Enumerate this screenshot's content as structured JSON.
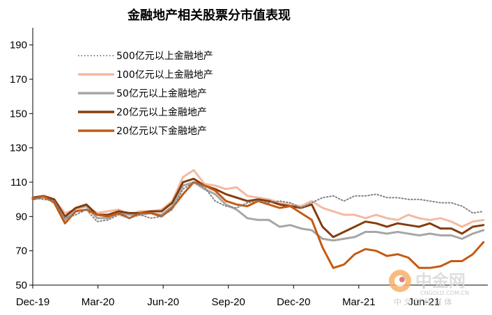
{
  "chart_data": {
    "type": "line",
    "title": "金融地产相关股票分市值表现",
    "xlabel": "",
    "ylabel": "",
    "ylim": [
      50,
      200
    ],
    "yticks": [
      50,
      70,
      90,
      110,
      130,
      150,
      170,
      190
    ],
    "xtick_labels": [
      "Dec-19",
      "Mar-20",
      "Jun-20",
      "Sep-20",
      "Dec-20",
      "Mar-21",
      "Jun-21"
    ],
    "x": [
      0,
      0.5,
      1,
      1.5,
      2,
      2.5,
      3,
      3.5,
      4,
      4.5,
      5,
      5.5,
      6,
      6.5,
      7,
      7.5,
      8,
      8.5,
      9,
      9.5,
      10,
      10.5,
      11,
      11.5,
      12,
      12.5,
      13,
      13.5,
      14,
      14.5,
      15,
      15.5,
      16,
      16.5,
      17,
      17.5,
      18,
      18.5,
      19,
      19.5,
      20,
      20.5,
      21
    ],
    "grid": false,
    "legend_position": "top-left",
    "series": [
      {
        "name": "500亿元以上金融地产",
        "color": "#808080",
        "style": "dotted",
        "values": [
          101,
          100,
          99,
          89,
          91,
          94,
          87,
          88,
          91,
          89,
          91,
          89,
          90,
          94,
          106,
          110,
          107,
          99,
          96,
          95,
          98,
          99,
          98,
          99,
          98,
          95,
          98,
          101,
          102,
          99,
          102,
          102,
          103,
          101,
          101,
          100,
          100,
          99,
          98,
          98,
          96,
          92,
          93
        ]
      },
      {
        "name": "100亿元以上金融地产",
        "color": "#f4b9a0",
        "style": "solid",
        "values": [
          101,
          101,
          100,
          92,
          94,
          96,
          92,
          93,
          94,
          91,
          93,
          93,
          94,
          99,
          113,
          117,
          109,
          108,
          106,
          107,
          102,
          101,
          100,
          98,
          97,
          96,
          99,
          95,
          93,
          91,
          91,
          89,
          91,
          89,
          88,
          91,
          89,
          88,
          89,
          87,
          84,
          87,
          88
        ]
      },
      {
        "name": "50亿元以上金融地产",
        "color": "#a6a6a6",
        "style": "solid",
        "values": [
          100,
          101,
          99,
          88,
          95,
          96,
          89,
          89,
          92,
          91,
          91,
          92,
          91,
          96,
          108,
          110,
          106,
          103,
          97,
          94,
          89,
          88,
          88,
          84,
          85,
          83,
          82,
          77,
          76,
          77,
          78,
          81,
          81,
          80,
          81,
          80,
          79,
          80,
          79,
          79,
          77,
          80,
          82
        ]
      },
      {
        "name": "20亿元以上金融地产",
        "color": "#843c0c",
        "style": "solid",
        "values": [
          101,
          102,
          100,
          90,
          95,
          97,
          91,
          91,
          93,
          92,
          92,
          93,
          93,
          98,
          110,
          112,
          108,
          106,
          103,
          101,
          99,
          100,
          99,
          97,
          96,
          95,
          97,
          84,
          78,
          81,
          84,
          87,
          86,
          84,
          86,
          85,
          84,
          86,
          83,
          83,
          80,
          84,
          85
        ]
      },
      {
        "name": "20亿元以下金融地产",
        "color": "#c55a11",
        "style": "solid",
        "values": [
          100,
          102,
          98,
          86,
          93,
          94,
          91,
          90,
          92,
          89,
          92,
          92,
          90,
          95,
          103,
          110,
          108,
          105,
          99,
          97,
          96,
          99,
          97,
          95,
          96,
          92,
          88,
          72,
          60,
          62,
          68,
          71,
          70,
          67,
          68,
          66,
          60,
          60,
          61,
          64,
          64,
          68,
          75
        ]
      }
    ]
  },
  "watermark": {
    "brand": "中金网",
    "url": "CNGOLD.COM.CN",
    "subtitle": "中 文 财 经 媒 体"
  }
}
